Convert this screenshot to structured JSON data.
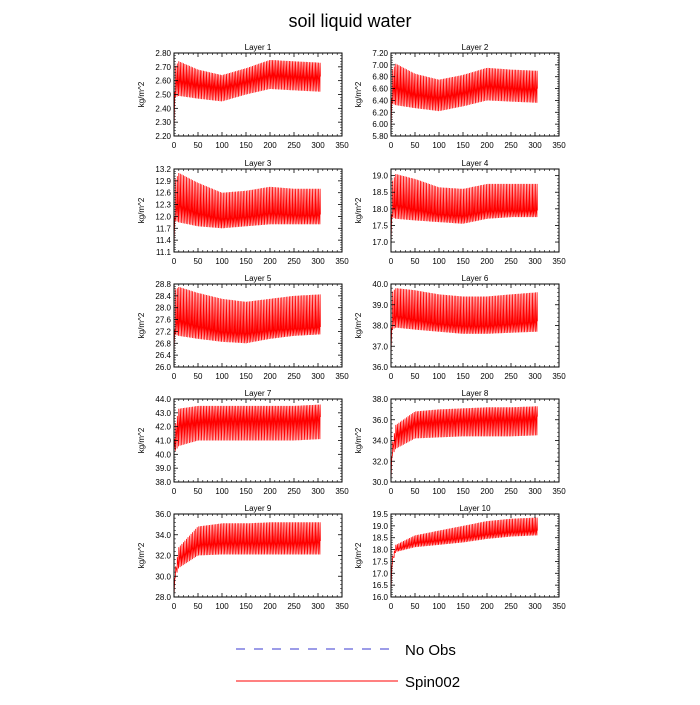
{
  "chart_data": {
    "type": "line",
    "title": "soil liquid water",
    "line_color": "#ff0000",
    "noobs_color": "#3a3ad0",
    "legend": [
      {
        "name": "No Obs",
        "style": "dashed",
        "color": "#3a3ad0"
      },
      {
        "name": "Spin002",
        "style": "solid",
        "color": "#ff0000"
      }
    ],
    "xlim": [
      0,
      350
    ],
    "xticks": [
      0,
      50,
      100,
      150,
      200,
      250,
      300,
      350
    ],
    "panels": [
      {
        "title": "Layer 1",
        "ylabel": "kg/m^2",
        "ylim": [
          2.2,
          2.8
        ],
        "yticks": [
          "2.20",
          "2.30",
          "2.40",
          "2.50",
          "2.60",
          "2.70",
          "2.80"
        ],
        "series": [
          {
            "name": "Spin002",
            "x": [
              0,
              2,
              10,
              50,
              100,
              150,
              200,
              250,
              305
            ],
            "upper": [
              2.2,
              2.7,
              2.74,
              2.68,
              2.64,
              2.69,
              2.75,
              2.74,
              2.73
            ],
            "lower": [
              2.2,
              2.48,
              2.49,
              2.47,
              2.45,
              2.5,
              2.54,
              2.53,
              2.52
            ],
            "mean": [
              2.2,
              2.6,
              2.61,
              2.58,
              2.56,
              2.6,
              2.65,
              2.64,
              2.63
            ]
          }
        ]
      },
      {
        "title": "Layer 2",
        "ylabel": "kg/m^2",
        "ylim": [
          5.8,
          7.2
        ],
        "yticks": [
          "5.80",
          "6.00",
          "6.20",
          "6.40",
          "6.60",
          "6.80",
          "7.00",
          "7.20"
        ],
        "series": [
          {
            "name": "Spin002",
            "x": [
              0,
              2,
              10,
              50,
              100,
              150,
              200,
              250,
              305
            ],
            "upper": [
              5.8,
              6.9,
              7.02,
              6.85,
              6.75,
              6.83,
              6.95,
              6.92,
              6.9
            ],
            "lower": [
              5.8,
              6.35,
              6.32,
              6.27,
              6.22,
              6.3,
              6.4,
              6.38,
              6.36
            ],
            "mean": [
              5.8,
              6.6,
              6.65,
              6.52,
              6.47,
              6.55,
              6.67,
              6.63,
              6.6
            ]
          }
        ]
      },
      {
        "title": "Layer 3",
        "ylabel": "kg/m^2",
        "ylim": [
          11.1,
          13.2
        ],
        "yticks": [
          "11.1",
          "11.4",
          "11.7",
          "12.0",
          "12.3",
          "12.6",
          "12.9",
          "13.2"
        ],
        "series": [
          {
            "name": "Spin002",
            "x": [
              0,
              2,
              10,
              50,
              100,
              150,
              200,
              250,
              305
            ],
            "upper": [
              11.1,
              12.9,
              13.1,
              12.85,
              12.6,
              12.65,
              12.75,
              12.7,
              12.7
            ],
            "lower": [
              11.1,
              11.9,
              11.85,
              11.75,
              11.7,
              11.75,
              11.8,
              11.8,
              11.8
            ],
            "mean": [
              11.1,
              12.2,
              12.3,
              12.1,
              11.95,
              12.0,
              12.1,
              12.05,
              12.05
            ]
          }
        ]
      },
      {
        "title": "Layer 4",
        "ylabel": "kg/m^2",
        "ylim": [
          16.7,
          19.2
        ],
        "yticks": [
          "17.0",
          "17.5",
          "18.0",
          "18.5",
          "19.0"
        ],
        "series": [
          {
            "name": "Spin002",
            "x": [
              0,
              2,
              10,
              50,
              100,
              150,
              200,
              250,
              305
            ],
            "upper": [
              16.8,
              18.8,
              19.05,
              18.9,
              18.65,
              18.6,
              18.75,
              18.75,
              18.75
            ],
            "lower": [
              16.8,
              17.75,
              17.7,
              17.65,
              17.6,
              17.55,
              17.7,
              17.75,
              17.75
            ],
            "mean": [
              16.8,
              18.1,
              18.15,
              18.0,
              17.85,
              17.8,
              17.95,
              17.95,
              17.95
            ]
          }
        ]
      },
      {
        "title": "Layer 5",
        "ylabel": "kg/m^2",
        "ylim": [
          26.0,
          28.8
        ],
        "yticks": [
          "26.0",
          "26.4",
          "26.8",
          "27.2",
          "27.6",
          "28.0",
          "28.4",
          "28.8"
        ],
        "series": [
          {
            "name": "Spin002",
            "x": [
              0,
              2,
              10,
              50,
              100,
              150,
              200,
              250,
              305
            ],
            "upper": [
              26.3,
              28.6,
              28.7,
              28.5,
              28.3,
              28.2,
              28.3,
              28.4,
              28.45
            ],
            "lower": [
              26.3,
              27.1,
              27.05,
              26.95,
              26.85,
              26.8,
              26.95,
              27.05,
              27.1
            ],
            "mean": [
              26.3,
              27.5,
              27.6,
              27.4,
              27.2,
              27.15,
              27.25,
              27.3,
              27.35
            ]
          }
        ]
      },
      {
        "title": "Layer 6",
        "ylabel": "kg/m^2",
        "ylim": [
          36.0,
          40.0
        ],
        "yticks": [
          "36.0",
          "37.0",
          "38.0",
          "39.0",
          "40.0"
        ],
        "series": [
          {
            "name": "Spin002",
            "x": [
              0,
              2,
              10,
              50,
              100,
              150,
              200,
              250,
              305
            ],
            "upper": [
              36.3,
              39.6,
              39.8,
              39.7,
              39.5,
              39.4,
              39.4,
              39.5,
              39.6
            ],
            "lower": [
              36.3,
              37.8,
              37.9,
              37.8,
              37.7,
              37.6,
              37.6,
              37.65,
              37.7
            ],
            "mean": [
              36.3,
              38.3,
              38.5,
              38.3,
              38.1,
              38.0,
              38.0,
              38.1,
              38.2
            ]
          }
        ]
      },
      {
        "title": "Layer 7",
        "ylabel": "kg/m^2",
        "ylim": [
          38.0,
          44.0
        ],
        "yticks": [
          "38.0",
          "39.0",
          "40.0",
          "41.0",
          "42.0",
          "43.0",
          "44.0"
        ],
        "series": [
          {
            "name": "Spin002",
            "x": [
              0,
              2,
              10,
              50,
              100,
              150,
              200,
              250,
              305
            ],
            "upper": [
              40.0,
              42.0,
              43.3,
              43.5,
              43.5,
              43.5,
              43.5,
              43.5,
              43.6
            ],
            "lower": [
              40.0,
              40.2,
              40.6,
              41.0,
              41.0,
              41.0,
              41.0,
              41.0,
              41.1
            ],
            "mean": [
              40.0,
              41.4,
              42.3,
              42.5,
              42.6,
              42.6,
              42.6,
              42.6,
              42.7
            ]
          }
        ]
      },
      {
        "title": "Layer 8",
        "ylabel": "kg/m^2",
        "ylim": [
          30.0,
          38.0
        ],
        "yticks": [
          "30.0",
          "32.0",
          "34.0",
          "36.0",
          "38.0"
        ],
        "series": [
          {
            "name": "Spin002",
            "x": [
              0,
              2,
              10,
              50,
              100,
              150,
              200,
              250,
              305
            ],
            "upper": [
              30.0,
              33.5,
              35.5,
              36.8,
              37.0,
              37.1,
              37.2,
              37.2,
              37.3
            ],
            "lower": [
              30.0,
              32.5,
              33.2,
              34.2,
              34.3,
              34.4,
              34.4,
              34.4,
              34.5
            ],
            "mean": [
              30.0,
              33.0,
              34.6,
              35.8,
              36.0,
              36.1,
              36.2,
              36.2,
              36.3
            ]
          }
        ]
      },
      {
        "title": "Layer 9",
        "ylabel": "kg/m^2",
        "ylim": [
          28.0,
          36.0
        ],
        "yticks": [
          "28.0",
          "30.0",
          "32.0",
          "34.0",
          "36.0"
        ],
        "series": [
          {
            "name": "Spin002",
            "x": [
              0,
              2,
              10,
              50,
              100,
              150,
              200,
              250,
              305
            ],
            "upper": [
              28.0,
              30.5,
              32.8,
              34.8,
              35.1,
              35.1,
              35.2,
              35.2,
              35.2
            ],
            "lower": [
              28.0,
              29.8,
              30.8,
              32.0,
              32.1,
              32.1,
              32.1,
              32.1,
              32.1
            ],
            "mean": [
              28.0,
              30.2,
              31.8,
              33.1,
              33.3,
              33.3,
              33.3,
              33.3,
              33.4
            ]
          }
        ]
      },
      {
        "title": "Layer 10",
        "ylabel": "kg/m^2",
        "ylim": [
          16.0,
          19.5
        ],
        "yticks": [
          "16.0",
          "16.5",
          "17.0",
          "17.5",
          "18.0",
          "18.5",
          "19.0",
          "19.5"
        ],
        "series": [
          {
            "name": "Spin002",
            "x": [
              0,
              2,
              10,
              50,
              100,
              150,
              200,
              250,
              305
            ],
            "upper": [
              16.2,
              17.6,
              18.2,
              18.6,
              18.8,
              19.0,
              19.2,
              19.3,
              19.35
            ],
            "lower": [
              16.2,
              17.4,
              17.9,
              18.1,
              18.2,
              18.3,
              18.45,
              18.55,
              18.6
            ],
            "mean": [
              16.2,
              17.5,
              18.0,
              18.3,
              18.4,
              18.5,
              18.65,
              18.75,
              18.8
            ]
          }
        ]
      }
    ]
  }
}
